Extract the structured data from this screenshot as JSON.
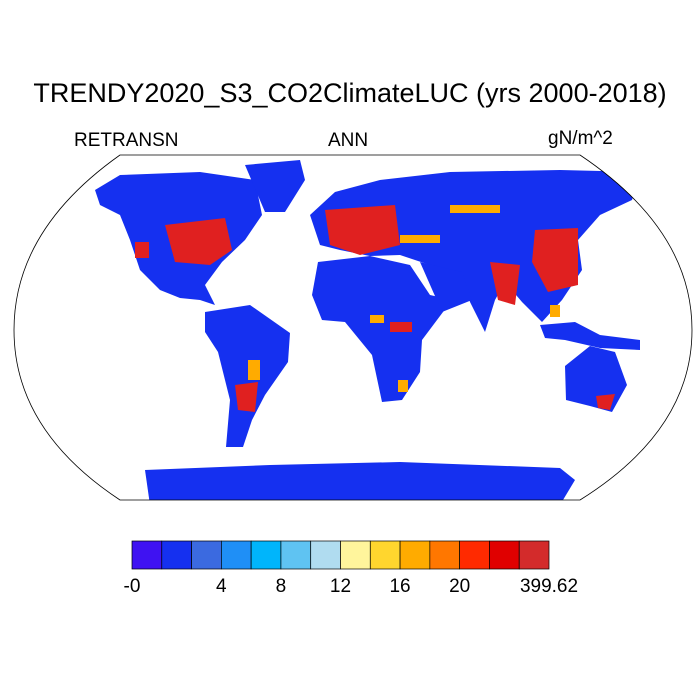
{
  "title": "TRENDY2020_S3_CO2ClimateLUC (yrs 2000-2018)",
  "left_string": "RETRANSN",
  "center_string": "ANN",
  "right_string": "gN/m^2",
  "colorbar": {
    "colors": [
      "#3f12f2",
      "#1530f0",
      "#3b6ae0",
      "#1f8ff6",
      "#00b5fb",
      "#5fc3f2",
      "#b0dcf0",
      "#fff59c",
      "#ffd62e",
      "#ffab00",
      "#ff7700",
      "#ff2a00",
      "#e00000",
      "#d32b2b"
    ],
    "labels": [
      "-0",
      "4",
      "8",
      "12",
      "16",
      "20",
      "399.62"
    ],
    "label_boundaries": [
      0,
      3,
      5,
      7,
      9,
      11,
      14
    ]
  },
  "map": {
    "land_color": "#1530f0",
    "high_color": "#e02020",
    "mid_color": "#ffab00"
  }
}
